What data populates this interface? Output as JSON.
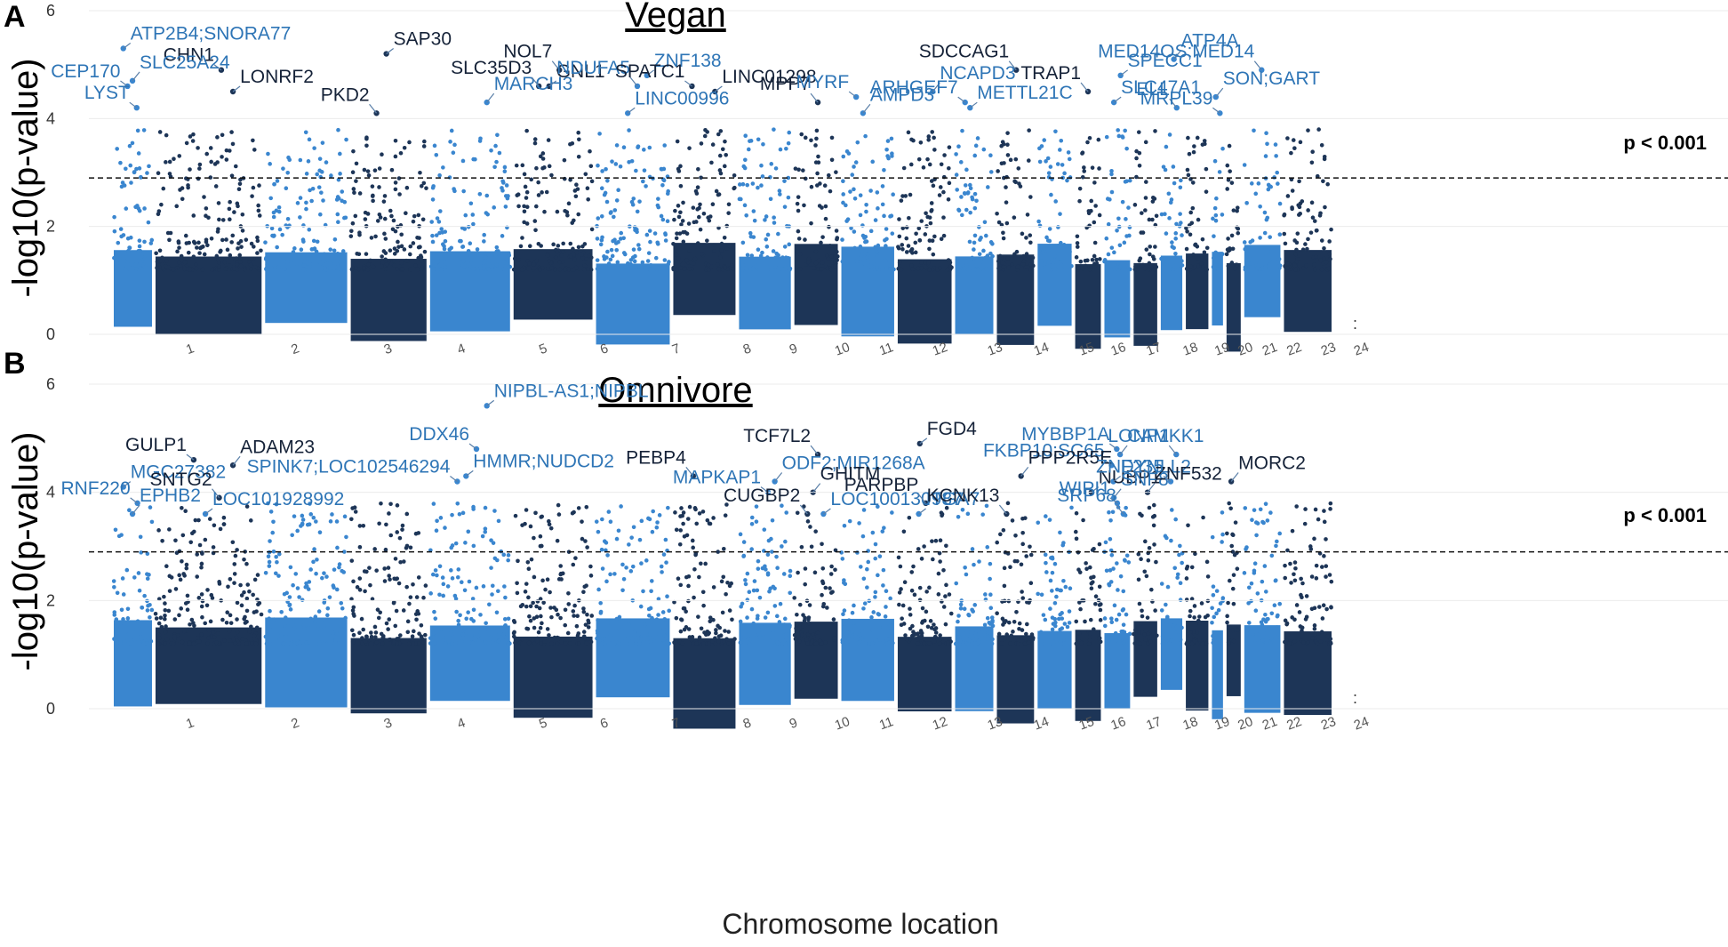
{
  "colors": {
    "dark": "#1d3557",
    "light": "#3a86cf",
    "dark_label": "#152238",
    "light_label": "#2e75b6"
  },
  "chart_data": [
    {
      "type": "scatter",
      "subtype": "manhattan",
      "panel": "A",
      "title": "Vegan",
      "xlabel": "",
      "ylabel": "-log10(p-value)",
      "ylim": [
        0,
        6
      ],
      "yticks": [
        "0",
        "2",
        "4",
        "6"
      ],
      "threshold_y": 2.9,
      "threshold_label": "p < 0.001",
      "chromosomes": [
        "1",
        "2",
        "3",
        "4",
        "5",
        "6",
        "7",
        "8",
        "9",
        "10",
        "11",
        "12",
        "13",
        "14",
        "15",
        "16",
        "17",
        "18",
        "19",
        "20",
        "21",
        "22",
        "23",
        "24"
      ],
      "top_hits": [
        {
          "gene": "ATP2B4;SNORA77",
          "chr": "1",
          "y": 5.3,
          "color": "light"
        },
        {
          "gene": "CHN1",
          "chr": "2",
          "y": 4.9,
          "color": "dark"
        },
        {
          "gene": "SLC25A24",
          "chr": "1",
          "y": 4.7,
          "color": "light"
        },
        {
          "gene": "CEP170",
          "chr": "1",
          "y": 4.6,
          "color": "light"
        },
        {
          "gene": "LONRF2",
          "chr": "2",
          "y": 4.5,
          "color": "dark"
        },
        {
          "gene": "LYST",
          "chr": "1",
          "y": 4.2,
          "color": "light"
        },
        {
          "gene": "SAP30",
          "chr": "4",
          "y": 5.2,
          "color": "dark"
        },
        {
          "gene": "PKD2",
          "chr": "4",
          "y": 4.1,
          "color": "dark"
        },
        {
          "gene": "MARCH3",
          "chr": "5",
          "y": 4.3,
          "color": "light"
        },
        {
          "gene": "NOL7",
          "chr": "6",
          "y": 4.9,
          "color": "dark"
        },
        {
          "gene": "GNL1",
          "chr": "6",
          "y": 4.6,
          "color": "dark"
        },
        {
          "gene": "SLC35D3",
          "chr": "6",
          "y": 4.6,
          "color": "dark"
        },
        {
          "gene": "ZNF138",
          "chr": "7",
          "y": 4.8,
          "color": "light"
        },
        {
          "gene": "NDUFA5",
          "chr": "7",
          "y": 4.6,
          "color": "light"
        },
        {
          "gene": "LINC00996",
          "chr": "7",
          "y": 4.1,
          "color": "light"
        },
        {
          "gene": "SPATC1",
          "chr": "8",
          "y": 4.6,
          "color": "dark"
        },
        {
          "gene": "LINC01298",
          "chr": "8",
          "y": 4.5,
          "color": "dark"
        },
        {
          "gene": "MPP7",
          "chr": "10",
          "y": 4.3,
          "color": "dark"
        },
        {
          "gene": "AMPD3",
          "chr": "11",
          "y": 4.1,
          "color": "light"
        },
        {
          "gene": "MYRF",
          "chr": "11",
          "y": 4.4,
          "color": "light"
        },
        {
          "gene": "NCAPD3",
          "chr": "12",
          "y": 4.5,
          "color": "light"
        },
        {
          "gene": "SDCCAG1",
          "chr": "14",
          "y": 4.9,
          "color": "dark"
        },
        {
          "gene": "METTL21C",
          "chr": "13",
          "y": 4.2,
          "color": "light"
        },
        {
          "gene": "ARHGEF7",
          "chr": "13",
          "y": 4.3,
          "color": "light"
        },
        {
          "gene": "SPECC1",
          "chr": "17",
          "y": 4.8,
          "color": "light"
        },
        {
          "gene": "TRAP1",
          "chr": "16",
          "y": 4.5,
          "color": "dark"
        },
        {
          "gene": "SLC47A1",
          "chr": "17",
          "y": 4.3,
          "color": "light"
        },
        {
          "gene": "ELL",
          "chr": "19",
          "y": 4.2,
          "color": "light"
        },
        {
          "gene": "ATP4A",
          "chr": "19",
          "y": 5.1,
          "color": "light"
        },
        {
          "gene": "MED14OS;MED14",
          "chr": "23",
          "y": 4.9,
          "color": "light"
        },
        {
          "gene": "SON;GART",
          "chr": "21",
          "y": 4.4,
          "color": "light"
        },
        {
          "gene": "MRPL39",
          "chr": "21",
          "y": 4.1,
          "color": "light"
        }
      ]
    },
    {
      "type": "scatter",
      "subtype": "manhattan",
      "panel": "B",
      "title": "Omnivore",
      "xlabel": "Chromosome location",
      "ylabel": "-log10(p-value)",
      "ylim": [
        0,
        6
      ],
      "yticks": [
        "0",
        "2",
        "4",
        "6"
      ],
      "threshold_y": 2.9,
      "threshold_label": "p < 0.001",
      "chromosomes": [
        "1",
        "2",
        "3",
        "4",
        "5",
        "6",
        "7",
        "8",
        "9",
        "10",
        "11",
        "12",
        "13",
        "14",
        "15",
        "16",
        "17",
        "18",
        "19",
        "20",
        "21",
        "22",
        "23",
        "24"
      ],
      "top_hits": [
        {
          "gene": "MGC27382",
          "chr": "1",
          "y": 4.1,
          "color": "light"
        },
        {
          "gene": "RNF220",
          "chr": "1",
          "y": 3.8,
          "color": "light"
        },
        {
          "gene": "EPHB2",
          "chr": "1",
          "y": 3.6,
          "color": "light"
        },
        {
          "gene": "GULP1",
          "chr": "2",
          "y": 4.6,
          "color": "dark"
        },
        {
          "gene": "ADAM23",
          "chr": "2",
          "y": 4.5,
          "color": "dark"
        },
        {
          "gene": "SNTG2",
          "chr": "2",
          "y": 3.9,
          "color": "dark"
        },
        {
          "gene": "LOC101928992",
          "chr": "2",
          "y": 3.6,
          "color": "light"
        },
        {
          "gene": "SPINK7;LOC102546294",
          "chr": "5",
          "y": 4.2,
          "color": "light"
        },
        {
          "gene": "NIPBL-AS1;NIPBL",
          "chr": "5",
          "y": 5.6,
          "color": "light"
        },
        {
          "gene": "DDX46",
          "chr": "5",
          "y": 4.8,
          "color": "light"
        },
        {
          "gene": "HMMR;NUDCD2",
          "chr": "5",
          "y": 4.3,
          "color": "light"
        },
        {
          "gene": "PEBP4",
          "chr": "8",
          "y": 4.3,
          "color": "dark"
        },
        {
          "gene": "ODF2;MIR1268A",
          "chr": "9",
          "y": 4.2,
          "color": "light"
        },
        {
          "gene": "MAPKAP1",
          "chr": "9",
          "y": 4.0,
          "color": "light"
        },
        {
          "gene": "GHITM",
          "chr": "10",
          "y": 4.0,
          "color": "dark"
        },
        {
          "gene": "CUGBP2",
          "chr": "10",
          "y": 3.6,
          "color": "dark"
        },
        {
          "gene": "LOC100130987",
          "chr": "10",
          "y": 3.6,
          "color": "light"
        },
        {
          "gene": "TCF7L2",
          "chr": "10",
          "y": 4.7,
          "color": "dark"
        },
        {
          "gene": "FGD4",
          "chr": "12",
          "y": 4.9,
          "color": "dark"
        },
        {
          "gene": "FKBP10;SC65",
          "chr": "17",
          "y": 4.5,
          "color": "light"
        },
        {
          "gene": "PPP2R5E",
          "chr": "14",
          "y": 4.3,
          "color": "dark"
        },
        {
          "gene": "PARPBP",
          "chr": "12",
          "y": 3.8,
          "color": "dark"
        },
        {
          "gene": "ITGA7",
          "chr": "12",
          "y": 3.6,
          "color": "light"
        },
        {
          "gene": "KCNK13",
          "chr": "14",
          "y": 3.6,
          "color": "dark"
        },
        {
          "gene": "NUBP1",
          "chr": "16",
          "y": 4.0,
          "color": "dark"
        },
        {
          "gene": "WIPI1",
          "chr": "17",
          "y": 3.8,
          "color": "light"
        },
        {
          "gene": "SNF8",
          "chr": "17",
          "y": 3.9,
          "color": "light"
        },
        {
          "gene": "SRP68",
          "chr": "17",
          "y": 3.6,
          "color": "light"
        },
        {
          "gene": "CAMKK1",
          "chr": "17",
          "y": 4.7,
          "color": "light"
        },
        {
          "gene": "MYBBP1A",
          "chr": "17",
          "y": 4.8,
          "color": "light"
        },
        {
          "gene": "DYNLL2",
          "chr": "17",
          "y": 4.2,
          "color": "light"
        },
        {
          "gene": "LONP1",
          "chr": "19",
          "y": 4.7,
          "color": "light"
        },
        {
          "gene": "ZNF532",
          "chr": "18",
          "y": 4.0,
          "color": "dark"
        },
        {
          "gene": "ZNF235",
          "chr": "19",
          "y": 4.2,
          "color": "light"
        },
        {
          "gene": "MORC2",
          "chr": "22",
          "y": 4.2,
          "color": "dark"
        }
      ]
    }
  ]
}
